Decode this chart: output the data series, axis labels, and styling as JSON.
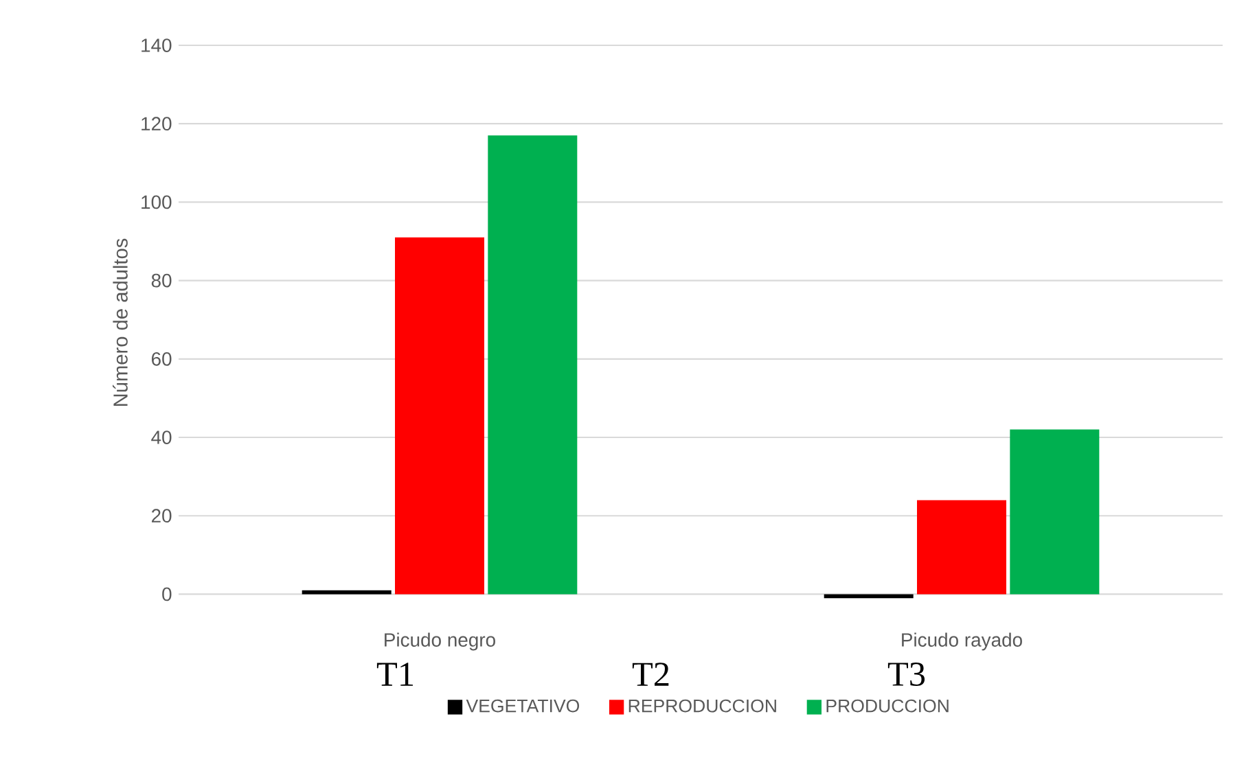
{
  "chart_data": {
    "type": "bar",
    "ylabel": "Número de adultos",
    "categories": [
      "Picudo negro",
      "Picudo rayado"
    ],
    "series": [
      {
        "name": "VEGETATIVO",
        "color": "#000000",
        "values": [
          1,
          -1
        ]
      },
      {
        "name": "REPRODUCCION",
        "color": "#ff0000",
        "values": [
          91,
          24
        ]
      },
      {
        "name": "PRODUCCION",
        "color": "#00b050",
        "values": [
          117,
          42
        ]
      }
    ],
    "ylim": [
      -1.5,
      140
    ],
    "yticks": [
      0,
      20,
      40,
      60,
      80,
      100,
      120,
      140
    ],
    "grid": "y",
    "legend": "bottom",
    "annotations": [
      "T1",
      "T2",
      "T3"
    ]
  }
}
